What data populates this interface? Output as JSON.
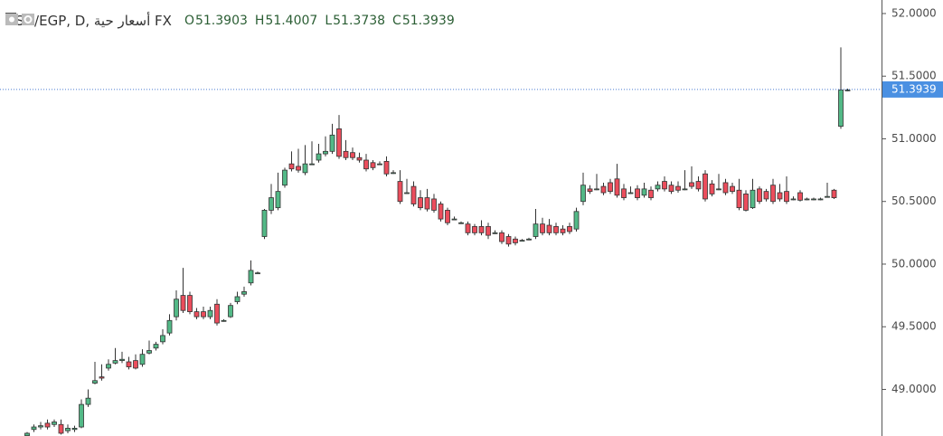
{
  "chart_data": {
    "type": "candlestick",
    "title": "USD/EGP, D, أسعار حية FX",
    "ohlc_legend": [
      {
        "label": "O",
        "value": 51.3903
      },
      {
        "label": "H",
        "value": 51.4007
      },
      {
        "label": "L",
        "value": 51.3738
      },
      {
        "label": "C",
        "value": 51.3939
      }
    ],
    "last_price": 51.3939,
    "up_color": "#53b987",
    "down_color": "#eb4d5c",
    "ylim": [
      48.628,
      52.108
    ],
    "yticks": [
      {
        "value": 49,
        "label": "49.0000"
      },
      {
        "value": 49.5,
        "label": "49.5000"
      },
      {
        "value": 50,
        "label": "50.0000"
      },
      {
        "value": 50.5,
        "label": "50.5000"
      },
      {
        "value": 51,
        "label": "51.0000"
      },
      {
        "value": 51.5,
        "label": "51.5000"
      },
      {
        "value": 52,
        "label": "52.0000"
      }
    ],
    "open": [
      48.63,
      48.68,
      48.7,
      48.73,
      48.72,
      48.72,
      48.67,
      48.68,
      48.7,
      48.88,
      49.05,
      49.1,
      49.17,
      49.21,
      49.23,
      49.22,
      49.23,
      49.2,
      49.29,
      49.33,
      49.38,
      49.45,
      49.58,
      49.75,
      49.75,
      49.62,
      49.62,
      49.58,
      49.68,
      49.55,
      49.58,
      49.7,
      49.76,
      49.85,
      49.93,
      50.22,
      50.43,
      50.45,
      50.63,
      50.8,
      50.78,
      50.73,
      50.8,
      50.83,
      50.88,
      50.9,
      51.08,
      50.9,
      50.89,
      50.85,
      50.83,
      50.81,
      50.8,
      50.82,
      50.73,
      50.66,
      50.57,
      50.62,
      50.53,
      50.53,
      50.52,
      50.48,
      50.43,
      50.36,
      50.33,
      50.32,
      50.3,
      50.3,
      50.3,
      50.25,
      50.25,
      50.22,
      50.2,
      50.19,
      50.2,
      50.22,
      50.32,
      50.31,
      50.3,
      50.28,
      50.3,
      50.28,
      50.5,
      50.6,
      50.6,
      50.62,
      50.65,
      50.68,
      50.6,
      50.57,
      50.6,
      50.55,
      50.59,
      50.6,
      50.66,
      50.63,
      50.62,
      50.6,
      50.65,
      50.66,
      50.72,
      50.64,
      50.6,
      50.65,
      50.62,
      50.59,
      50.56,
      50.45,
      50.6,
      50.58,
      50.63,
      50.57,
      50.58,
      50.52,
      50.57,
      50.52,
      50.52,
      50.52,
      50.54,
      50.59,
      51.1,
      51.39
    ],
    "high": [
      48.66,
      48.72,
      48.74,
      48.76,
      48.76,
      48.76,
      48.72,
      48.71,
      48.92,
      49.0,
      49.22,
      49.2,
      49.24,
      49.33,
      49.3,
      49.26,
      49.28,
      49.32,
      49.39,
      49.38,
      49.48,
      49.6,
      49.79,
      49.97,
      49.78,
      49.65,
      49.66,
      49.66,
      49.72,
      49.56,
      49.69,
      49.78,
      49.82,
      50.03,
      49.94,
      50.44,
      50.64,
      50.73,
      50.77,
      50.9,
      50.92,
      50.95,
      50.98,
      50.96,
      51.02,
      51.12,
      51.19,
      50.99,
      50.93,
      50.89,
      50.88,
      50.83,
      50.82,
      50.86,
      50.75,
      50.75,
      50.68,
      50.66,
      50.59,
      50.6,
      50.56,
      50.5,
      50.45,
      50.38,
      50.34,
      50.34,
      50.32,
      50.35,
      50.33,
      50.27,
      50.27,
      50.24,
      50.22,
      50.2,
      50.21,
      50.44,
      50.37,
      50.36,
      50.33,
      50.31,
      50.33,
      50.45,
      50.73,
      50.63,
      50.72,
      50.65,
      50.68,
      50.8,
      50.64,
      50.62,
      50.63,
      50.65,
      50.62,
      50.66,
      50.7,
      50.66,
      50.66,
      50.75,
      50.78,
      50.7,
      50.75,
      50.67,
      50.72,
      50.68,
      50.65,
      50.68,
      50.59,
      50.68,
      50.62,
      50.6,
      50.68,
      50.64,
      50.7,
      50.54,
      50.59,
      50.53,
      50.53,
      50.53,
      50.65,
      50.6,
      51.73,
      51.4
    ],
    "low": [
      48.62,
      48.66,
      48.68,
      48.68,
      48.7,
      48.64,
      48.65,
      48.66,
      48.69,
      48.86,
      49.04,
      49.07,
      49.15,
      49.2,
      49.21,
      49.16,
      49.16,
      49.18,
      49.28,
      49.31,
      49.36,
      49.43,
      49.55,
      49.61,
      49.6,
      49.56,
      49.56,
      49.56,
      49.51,
      49.54,
      49.57,
      49.68,
      49.74,
      49.83,
      49.92,
      50.2,
      50.4,
      50.43,
      50.61,
      50.74,
      50.73,
      50.71,
      50.79,
      50.81,
      50.86,
      50.88,
      50.84,
      50.83,
      50.83,
      50.81,
      50.74,
      50.75,
      50.79,
      50.7,
      50.72,
      50.48,
      50.56,
      50.46,
      50.43,
      50.42,
      50.41,
      50.34,
      50.31,
      50.35,
      50.32,
      50.23,
      50.23,
      50.23,
      50.2,
      50.24,
      50.16,
      50.14,
      50.15,
      50.18,
      50.19,
      50.2,
      50.23,
      50.23,
      50.23,
      50.23,
      50.24,
      50.26,
      50.47,
      50.56,
      50.59,
      50.55,
      50.56,
      50.53,
      50.51,
      50.56,
      50.51,
      50.53,
      50.51,
      50.58,
      50.58,
      50.56,
      50.57,
      50.59,
      50.6,
      50.58,
      50.5,
      50.54,
      50.59,
      50.55,
      50.56,
      50.43,
      50.42,
      50.44,
      50.48,
      50.5,
      50.48,
      50.5,
      50.48,
      50.51,
      50.5,
      50.51,
      50.51,
      50.51,
      50.53,
      50.52,
      51.08,
      51.38
    ],
    "close": [
      48.65,
      48.7,
      48.71,
      48.7,
      48.74,
      48.65,
      48.69,
      48.69,
      48.88,
      48.93,
      49.07,
      49.09,
      49.2,
      49.23,
      49.24,
      49.18,
      49.17,
      49.28,
      49.31,
      49.36,
      49.43,
      49.55,
      49.72,
      49.63,
      49.62,
      49.58,
      49.58,
      49.63,
      49.53,
      49.55,
      49.67,
      49.74,
      49.78,
      49.95,
      49.93,
      50.43,
      50.53,
      50.58,
      50.75,
      50.76,
      50.75,
      50.8,
      50.8,
      50.88,
      50.9,
      51.03,
      50.86,
      50.85,
      50.85,
      50.83,
      50.76,
      50.77,
      50.8,
      50.72,
      50.73,
      50.5,
      50.57,
      50.48,
      50.45,
      50.44,
      50.43,
      50.36,
      50.33,
      50.36,
      50.33,
      50.25,
      50.25,
      50.25,
      50.23,
      50.25,
      50.18,
      50.16,
      50.17,
      50.19,
      50.2,
      50.32,
      50.25,
      50.25,
      50.25,
      50.25,
      50.26,
      50.42,
      50.63,
      50.58,
      50.6,
      50.57,
      50.58,
      50.55,
      50.53,
      50.57,
      50.53,
      50.6,
      50.53,
      50.63,
      50.6,
      50.58,
      50.59,
      50.6,
      50.62,
      50.6,
      50.52,
      50.56,
      50.6,
      50.57,
      50.58,
      50.45,
      50.43,
      50.59,
      50.5,
      50.52,
      50.5,
      50.52,
      50.5,
      50.52,
      50.51,
      50.52,
      50.52,
      50.52,
      50.54,
      50.53,
      51.39,
      51.39
    ]
  }
}
